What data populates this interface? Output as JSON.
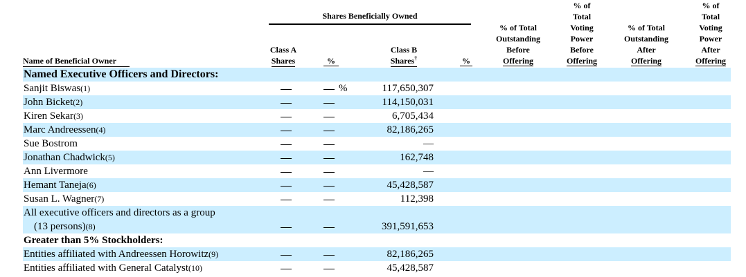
{
  "header": {
    "shares_beneficially_owned": "Shares Beneficially Owned",
    "name_col": "Name of Beneficial Owner",
    "class_a": [
      "Class A",
      "Shares"
    ],
    "pct": "%",
    "class_b": [
      "Class B",
      "Shares"
    ],
    "class_b_mark": "†",
    "pct_b": "%",
    "col_before_outstanding": [
      "% of Total",
      "Outstanding",
      "Before",
      "Offering"
    ],
    "col_before_voting": [
      "% of",
      "Total",
      "Voting",
      "Power",
      "Before",
      "Offering"
    ],
    "col_after_outstanding": [
      "% of Total",
      "Outstanding",
      "After",
      "Offering"
    ],
    "col_after_voting": [
      "% of",
      "Total",
      "Voting",
      "Power",
      "After",
      "Offering"
    ]
  },
  "sections": {
    "named": "Named Executive Officers and Directors:",
    "greater": "Greater than 5% Stockholders:"
  },
  "rows": [
    {
      "name": "Sanjit Biswas",
      "note": "(1)",
      "class_b": "117,650,307",
      "pct_symbol": "%"
    },
    {
      "name": "John Bicket",
      "note": "(2)",
      "class_b": "114,150,031"
    },
    {
      "name": "Kiren Sekar",
      "note": "(3)",
      "class_b": "6,705,434"
    },
    {
      "name": "Marc Andreessen",
      "note": "(4)",
      "class_b": "82,186,265"
    },
    {
      "name": "Sue Bostrom",
      "note": "",
      "class_b": "—"
    },
    {
      "name": "Jonathan Chadwick",
      "note": "(5)",
      "class_b": "162,748"
    },
    {
      "name": "Ann Livermore",
      "note": "",
      "class_b": "—"
    },
    {
      "name": "Hemant Taneja",
      "note": "(6)",
      "class_b": "45,428,587"
    },
    {
      "name": "Susan L. Wagner",
      "note": "(7)",
      "class_b": "112,398"
    }
  ],
  "group_row": {
    "line1": "All executive officers and directors as a group",
    "line2": "(13 persons)",
    "note": "(8)",
    "class_b": "391,591,653"
  },
  "holder_rows": [
    {
      "name": "Entities affiliated with Andreessen Horowitz",
      "note": "(9)",
      "class_b": "82,186,265"
    },
    {
      "name": "Entities affiliated with General Catalyst",
      "note": "(10)",
      "class_b": "45,428,587"
    }
  ]
}
